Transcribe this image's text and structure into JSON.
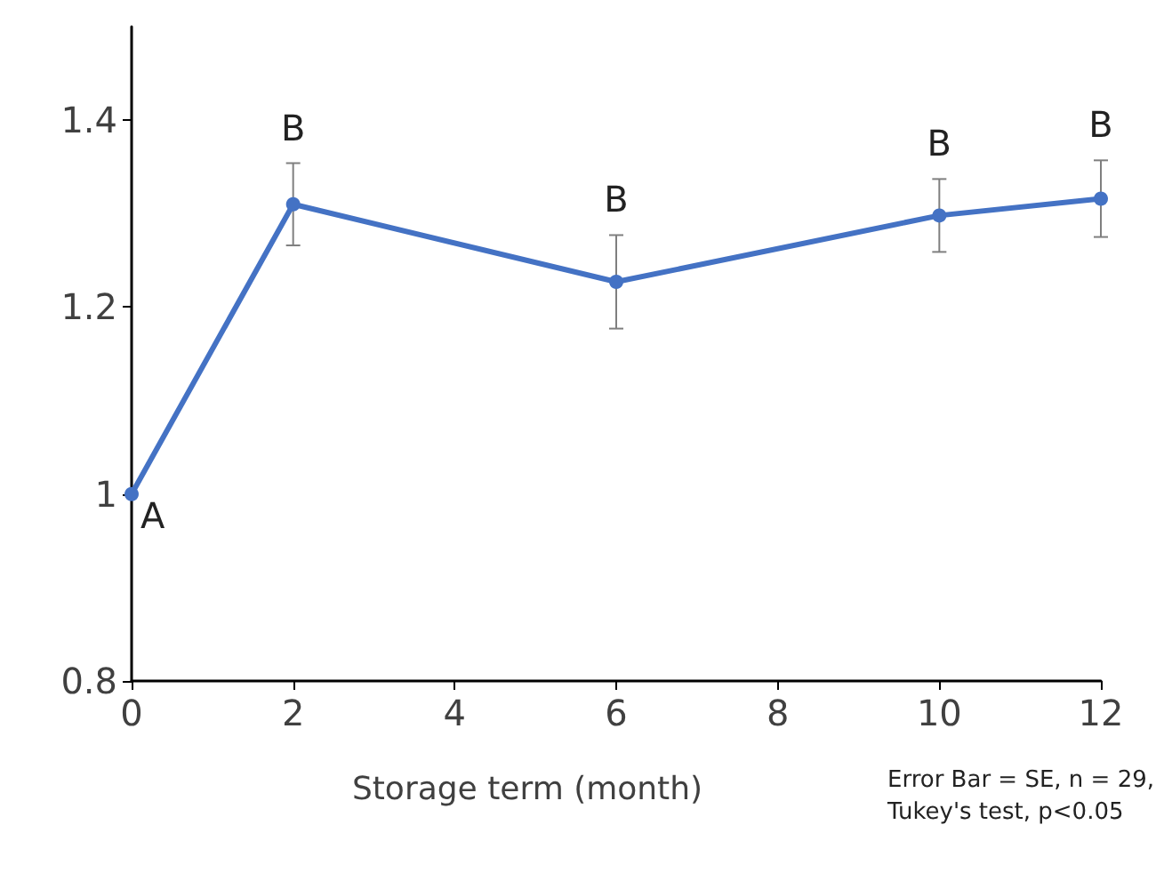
{
  "chart_data": {
    "type": "line",
    "xlabel": "Storage term (month)",
    "x": [
      0,
      2,
      6,
      10,
      12
    ],
    "series": [
      {
        "color": "#4472c4",
        "values": [
          1.0,
          1.31,
          1.227,
          1.298,
          1.316
        ],
        "errors": [
          null,
          0.044,
          0.05,
          0.039,
          0.041
        ]
      }
    ],
    "xlim": [
      0,
      12
    ],
    "xticks": [
      0,
      2,
      4,
      6,
      8,
      10,
      12
    ],
    "ylim": [
      0.8,
      1.5
    ],
    "yticks": [
      0.8,
      1,
      1.2,
      1.4
    ],
    "marker": "circle",
    "line_style": "solid",
    "annotations": [
      {
        "text": "A",
        "x": 0,
        "y": 1.0
      },
      {
        "text": "B",
        "x": 2,
        "y": 1.31
      },
      {
        "text": "B",
        "x": 6,
        "y": 1.227
      },
      {
        "text": "B",
        "x": 10,
        "y": 1.298
      },
      {
        "text": "B",
        "x": 12,
        "y": 1.316
      },
      "Error Bar = SE, n = 29,\nTukey's test, p<0.05"
    ]
  }
}
